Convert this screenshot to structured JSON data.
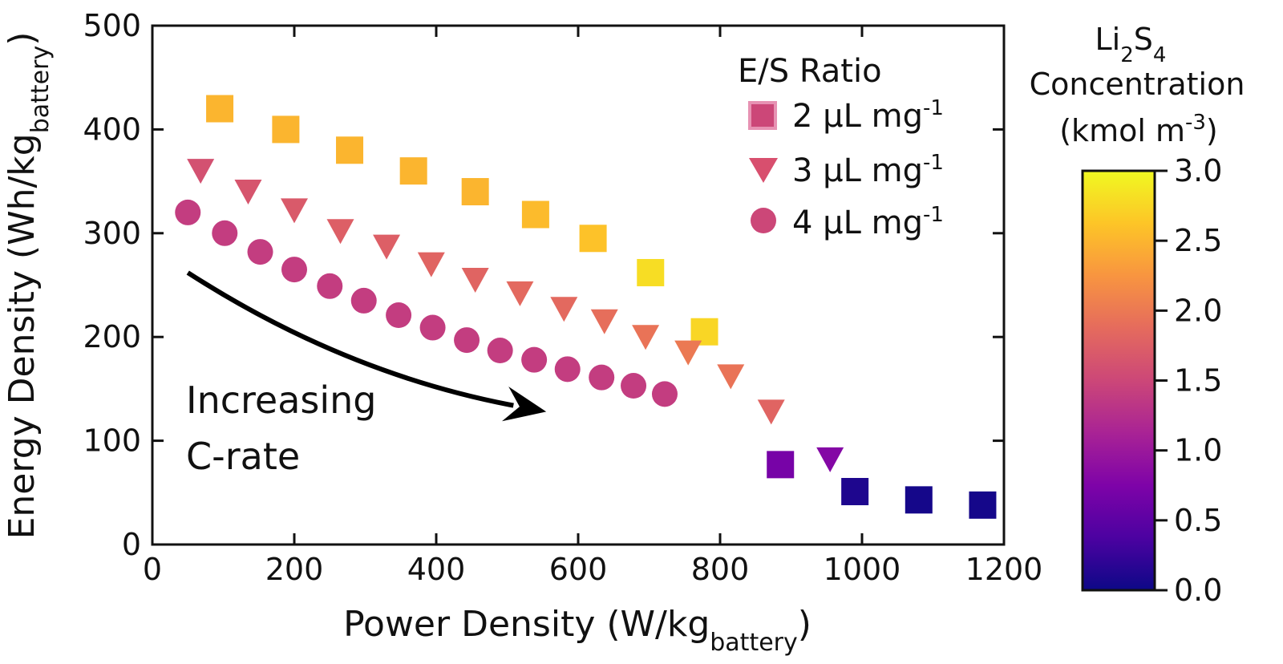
{
  "chart_data": {
    "type": "scatter",
    "xlabel": {
      "main": "Power Density (W/kg",
      "sub": "battery",
      "close": ")"
    },
    "ylabel": {
      "main": "Energy Density (Wh/kg",
      "sub": "battery",
      "close": ")"
    },
    "xlim": [
      0,
      1200
    ],
    "ylim": [
      0,
      500
    ],
    "xticks": [
      "0",
      "200",
      "400",
      "600",
      "800",
      "1000",
      "1200"
    ],
    "yticks": [
      "0",
      "100",
      "200",
      "300",
      "400",
      "500"
    ],
    "legend": {
      "title": "E/S Ratio",
      "placement": "top-right",
      "entries": [
        {
          "marker": "square",
          "label": "2 μL mg",
          "sup": "-1"
        },
        {
          "marker": "triangle",
          "label": "3 μL mg",
          "sup": "-1"
        },
        {
          "marker": "circle",
          "label": "4 μL mg",
          "sup": "-1"
        }
      ]
    },
    "annotation": {
      "line1": "Increasing",
      "line2": "C-rate"
    },
    "colorbar": {
      "title_line1_a": "Li",
      "title_line1_sub1": "2",
      "title_line1_b": "S",
      "title_line1_sub2": "4",
      "title_line2": "Concentration",
      "title_line3_a": "(kmol m",
      "title_line3_sup": "-3",
      "title_line3_b": ")",
      "range": [
        0.0,
        3.0
      ],
      "ticks": [
        "0.0",
        "0.5",
        "1.0",
        "1.5",
        "2.0",
        "2.5",
        "3.0"
      ],
      "colormap": "plasma"
    },
    "series": [
      {
        "marker": "square",
        "points": [
          {
            "x": 95,
            "y": 420,
            "c": 2.5
          },
          {
            "x": 188,
            "y": 400,
            "c": 2.5
          },
          {
            "x": 278,
            "y": 380,
            "c": 2.5
          },
          {
            "x": 368,
            "y": 360,
            "c": 2.5
          },
          {
            "x": 455,
            "y": 340,
            "c": 2.5
          },
          {
            "x": 540,
            "y": 318,
            "c": 2.55
          },
          {
            "x": 621,
            "y": 295,
            "c": 2.6
          },
          {
            "x": 702,
            "y": 262,
            "c": 2.8
          },
          {
            "x": 778,
            "y": 205,
            "c": 2.75
          },
          {
            "x": 885,
            "y": 77,
            "c": 0.7
          },
          {
            "x": 990,
            "y": 51,
            "c": 0.1
          },
          {
            "x": 1080,
            "y": 43,
            "c": 0.05
          },
          {
            "x": 1170,
            "y": 38,
            "c": 0.05
          }
        ]
      },
      {
        "marker": "triangle",
        "points": [
          {
            "x": 68,
            "y": 360,
            "c": 1.6
          },
          {
            "x": 135,
            "y": 340,
            "c": 1.65
          },
          {
            "x": 200,
            "y": 322,
            "c": 1.7
          },
          {
            "x": 265,
            "y": 302,
            "c": 1.75
          },
          {
            "x": 330,
            "y": 287,
            "c": 1.75
          },
          {
            "x": 393,
            "y": 270,
            "c": 1.8
          },
          {
            "x": 455,
            "y": 255,
            "c": 1.8
          },
          {
            "x": 518,
            "y": 242,
            "c": 1.85
          },
          {
            "x": 580,
            "y": 227,
            "c": 1.85
          },
          {
            "x": 637,
            "y": 215,
            "c": 1.9
          },
          {
            "x": 695,
            "y": 200,
            "c": 1.95
          },
          {
            "x": 755,
            "y": 185,
            "c": 2.0
          },
          {
            "x": 815,
            "y": 162,
            "c": 1.95
          },
          {
            "x": 872,
            "y": 128,
            "c": 1.8
          },
          {
            "x": 955,
            "y": 82,
            "c": 0.8
          }
        ]
      },
      {
        "marker": "circle",
        "points": [
          {
            "x": 50,
            "y": 320,
            "c": 1.4
          },
          {
            "x": 102,
            "y": 300,
            "c": 1.4
          },
          {
            "x": 152,
            "y": 282,
            "c": 1.4
          },
          {
            "x": 200,
            "y": 265,
            "c": 1.4
          },
          {
            "x": 250,
            "y": 249,
            "c": 1.4
          },
          {
            "x": 298,
            "y": 235,
            "c": 1.4
          },
          {
            "x": 347,
            "y": 221,
            "c": 1.4
          },
          {
            "x": 395,
            "y": 209,
            "c": 1.4
          },
          {
            "x": 443,
            "y": 197,
            "c": 1.4
          },
          {
            "x": 490,
            "y": 187,
            "c": 1.4
          },
          {
            "x": 538,
            "y": 178,
            "c": 1.4
          },
          {
            "x": 585,
            "y": 169,
            "c": 1.4
          },
          {
            "x": 633,
            "y": 161,
            "c": 1.4
          },
          {
            "x": 678,
            "y": 153,
            "c": 1.4
          },
          {
            "x": 722,
            "y": 145,
            "c": 1.4
          }
        ]
      }
    ],
    "arrow": {
      "from": {
        "x": 50,
        "y": 262
      },
      "ctrl": {
        "x": 270,
        "y": 165
      },
      "to": {
        "x": 555,
        "y": 128
      }
    }
  }
}
